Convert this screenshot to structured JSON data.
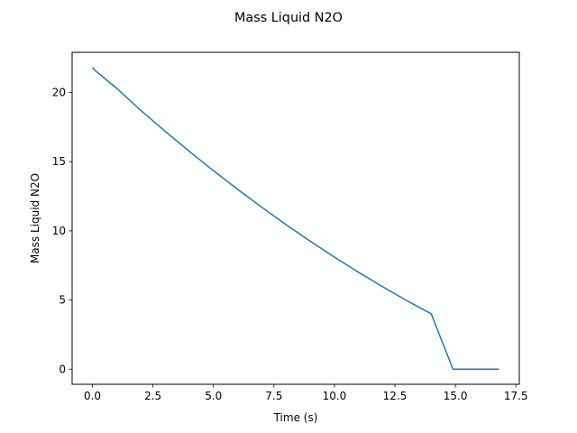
{
  "chart_data": {
    "type": "line",
    "title": "Mass Liquid N2O",
    "xlabel": "Time (s)",
    "ylabel": "Mass Liquid N2O",
    "xlim": [
      -0.84,
      17.64
    ],
    "ylim": [
      -1.09,
      22.9
    ],
    "xticks": [
      0,
      2.5,
      5,
      7.5,
      10,
      12.5,
      15,
      17.5
    ],
    "xtick_labels": [
      "0.0",
      "2.5",
      "5.0",
      "7.5",
      "10.0",
      "12.5",
      "15.0",
      "17.5"
    ],
    "yticks": [
      0,
      5,
      10,
      15,
      20
    ],
    "ytick_labels": [
      "0",
      "5",
      "10",
      "15",
      "20"
    ],
    "grid": false,
    "series": [
      {
        "color": "#1f77b4",
        "x": [
          0,
          0.1,
          1,
          2,
          3,
          4,
          5,
          6,
          7,
          8,
          9,
          10,
          11,
          12,
          13,
          14,
          14.9,
          15.5,
          16.0,
          16.8
        ],
        "y": [
          21.8,
          21.6,
          20.3,
          18.7,
          17.2,
          15.75,
          14.35,
          13.0,
          11.7,
          10.45,
          9.25,
          8.1,
          7.0,
          5.95,
          4.95,
          4.0,
          0.0,
          0.0,
          0.0,
          0.0
        ]
      }
    ]
  }
}
